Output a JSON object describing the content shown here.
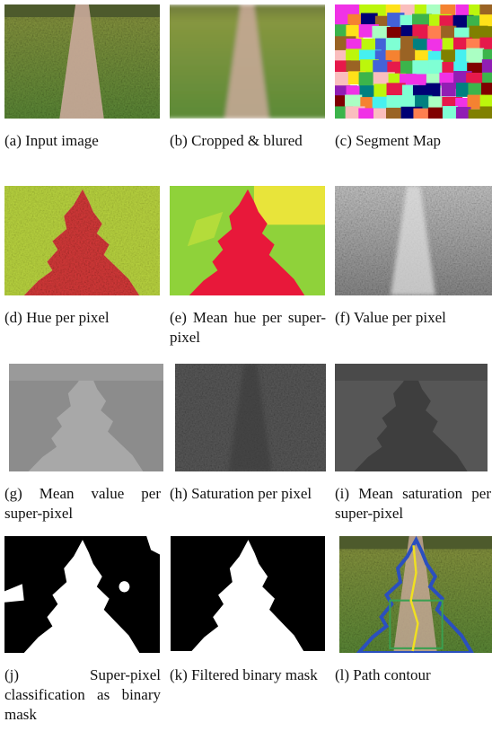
{
  "panels": [
    {
      "caption": "(a) Input image"
    },
    {
      "caption": "(b) Cropped & blured"
    },
    {
      "caption": "(c) Segment Map"
    },
    {
      "caption": "(d) Hue per pixel"
    },
    {
      "caption": "(e) Mean hue per super-pixel"
    },
    {
      "caption": "(f) Value per pixel"
    },
    {
      "caption": "(g) Mean value per super-pixel"
    },
    {
      "caption": "(h) Saturation per pixel"
    },
    {
      "caption": "(i) Mean saturation per super-pixel"
    },
    {
      "caption": "(j) Super-pixel classification as binary mask"
    },
    {
      "caption": "(k) Filtered binary mask"
    },
    {
      "caption": "(l) Path contour"
    }
  ]
}
